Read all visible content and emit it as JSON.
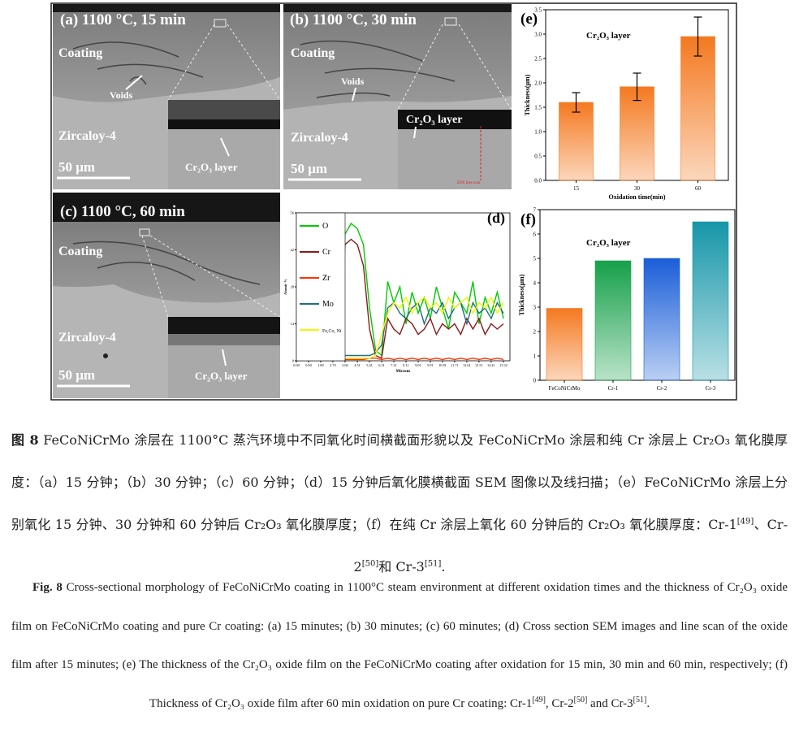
{
  "sem_panels": [
    {
      "label": "(a) 1100 °C, 15 min",
      "coating": "Coating",
      "voids": "Voids",
      "substrate": "Zircaloy-4",
      "inset_label": "Cr₂O₃ layer",
      "scale_bar": "50 μm"
    },
    {
      "label": "(b) 1100 °C, 30 min",
      "coating": "Coating",
      "voids": "Voids",
      "substrate": "Zircaloy-4",
      "inset_label": "Cr₂O₃ layer",
      "scale_bar": "50 μm",
      "line_scan": "EDS line scan"
    },
    {
      "label": "(c) 1100 °C, 60 min",
      "coating": "Coating",
      "substrate": "Zircaloy-4",
      "inset_label": "Cr₂O₃ layer",
      "scale_bar": "50 μm"
    }
  ],
  "chart_e": {
    "type": "bar",
    "panel_label": "(e)",
    "annotation": "Cr₂O₃ layer",
    "categories": [
      "15",
      "30",
      "60"
    ],
    "values": [
      1.6,
      1.92,
      2.95
    ],
    "errors": [
      0.2,
      0.28,
      0.4
    ],
    "color": "#f47920",
    "xlabel": "Oxidation time(min)",
    "ylabel": "Thickness(μm)",
    "ylim": [
      0,
      3.5
    ],
    "yticks": [
      {
        "value": 0,
        "label": "0.0"
      },
      0.5,
      {
        "value": 1,
        "label": "1.0"
      },
      1.5,
      {
        "value": 2,
        "label": "2.0"
      },
      2.5,
      {
        "value": 3,
        "label": "3.0"
      },
      3.5
    ]
  },
  "chart_f": {
    "type": "bar",
    "panel_label": "(f)",
    "annotation": "Cr₂O₃ layer",
    "categories": [
      "FeCoNiCrMo",
      "Cr-1",
      "Cr-2",
      "Cr-3"
    ],
    "values": [
      2.95,
      4.9,
      5.0,
      6.5
    ],
    "colors": [
      "#f47920",
      "#16a04a",
      "#1a5ed8",
      "#1696a8"
    ],
    "ylabel": "Thickness(μm)",
    "ylim": [
      0,
      7
    ],
    "yticks": [
      0,
      1,
      2,
      3,
      4,
      5,
      6,
      7
    ]
  },
  "chart_d": {
    "type": "line",
    "panel_label": "(d)",
    "xlabel": "Microns",
    "ylabel": "Atomic %",
    "x": [
      3.15,
      3.6,
      4.05,
      4.51,
      4.96,
      5.41,
      5.86,
      6.31,
      6.76,
      7.21,
      7.66,
      8.11,
      8.56,
      9.01,
      9.46,
      9.91,
      10.36,
      10.81,
      11.26,
      11.71,
      12.16,
      12.61,
      13.06,
      13.51,
      13.96,
      14.41,
      14.86,
      15.32
    ],
    "xlim": [
      0,
      15.8
    ],
    "xticks": [
      {
        "value": 0,
        "label": "0.00"
      },
      {
        "value": 0.9,
        "label": "0.90"
      },
      {
        "value": 1.8,
        "label": "1.80"
      },
      {
        "value": 2.7,
        "label": "2.70"
      },
      {
        "value": 3.6,
        "label": "3.60"
      },
      4.51,
      5.41,
      6.31,
      7.21,
      8.11,
      9.01,
      9.91,
      10.81,
      11.71,
      12.61,
      13.51,
      14.41,
      15.32
    ],
    "ylim": [
      0,
      56
    ],
    "yticks": [
      0,
      14,
      28,
      42,
      56
    ],
    "series": [
      {
        "name": "O",
        "color": "#00cc00",
        "values": [
          2,
          48,
          52,
          50,
          44,
          20,
          4,
          2,
          30,
          22,
          28,
          14,
          26,
          18,
          24,
          16,
          28,
          20,
          12,
          26,
          22,
          18,
          30,
          14,
          24,
          18,
          26,
          16
        ]
      },
      {
        "name": "Cr",
        "color": "#8b1a1a",
        "values": [
          2,
          44,
          46,
          44,
          36,
          12,
          2,
          1,
          16,
          12,
          10,
          16,
          14,
          10,
          12,
          16,
          10,
          14,
          12,
          14,
          10,
          16,
          12,
          16,
          10,
          14,
          12,
          14
        ]
      },
      {
        "name": "Zr",
        "color": "#ff3300",
        "values": [
          1,
          0.5,
          0.5,
          0.5,
          0.5,
          1,
          1,
          0.5,
          1,
          0.5,
          1,
          0.5,
          1,
          0.5,
          1,
          0.5,
          1,
          0.5,
          1,
          0.5,
          1,
          0.5,
          1,
          0.5,
          1,
          0.5,
          1,
          0.5
        ]
      },
      {
        "name": "Mo",
        "color": "#1f6f7f",
        "values": [
          1,
          2,
          2,
          2,
          2,
          2,
          3,
          6,
          20,
          22,
          18,
          16,
          20,
          22,
          14,
          20,
          18,
          22,
          16,
          20,
          22,
          14,
          22,
          18,
          20,
          16,
          22,
          18
        ]
      },
      {
        "name": "Fe,Co, Ni",
        "color": "#f5f500",
        "values": [
          1,
          1,
          1,
          1,
          1,
          1,
          2,
          10,
          18,
          22,
          20,
          24,
          18,
          22,
          24,
          20,
          22,
          18,
          24,
          20,
          22,
          24,
          18,
          22,
          20,
          24,
          18,
          22
        ]
      }
    ]
  },
  "caption_zh": {
    "label": "图 8",
    "parts": [
      "FeCoNiCrMo 涂层在 1100°C 蒸汽环境中不同氧化时间横截面形貌以及 FeCoNiCrMo 涂层和纯 Cr 涂层上 Cr₂O₃ 氧化膜厚度：（a）15 分钟；（b）30 分钟；（c）60 分钟；（d）15 分钟后氧化膜横截面 SEM 图像以及线扫描；（e）FeCoNiCrMo 涂层上分别氧化 15 分钟、30 分钟和 60 分钟后 Cr₂O₃ 氧化膜厚度；（f）在纯 Cr 涂层上氧化 60 分钟后的 Cr₂O₃ 氧化膜厚度：Cr-1",
      {
        "sup": "[49]"
      },
      "、Cr-2",
      {
        "sup": "[50]"
      },
      "和 Cr-3",
      {
        "sup": "[51]"
      },
      "."
    ]
  },
  "caption_en": {
    "label": "Fig. 8",
    "parts": [
      "Cross-sectional morphology of FeCoNiCrMo coating in 1100°C steam environment at different oxidation times and the thickness of Cr₂O₃ oxide film on FeCoNiCrMo coating and pure Cr coating: (a) 15 minutes; (b) 30 minutes; (c) 60 minutes; (d) Cross section SEM images and line scan of the oxide film after 15 minutes; (e) The thickness of the Cr₂O₃ oxide film on the FeCoNiCrMo coating after oxidation for 15 min, 30 min and 60 min, respectively; (f) Thickness of Cr₂O₃ oxide film after 60 min oxidation on pure Cr coating: Cr-1",
      {
        "sup": "[49]"
      },
      ", Cr-2",
      {
        "sup": "[50]"
      },
      " and Cr-3",
      {
        "sup": "[51]"
      },
      "."
    ]
  }
}
